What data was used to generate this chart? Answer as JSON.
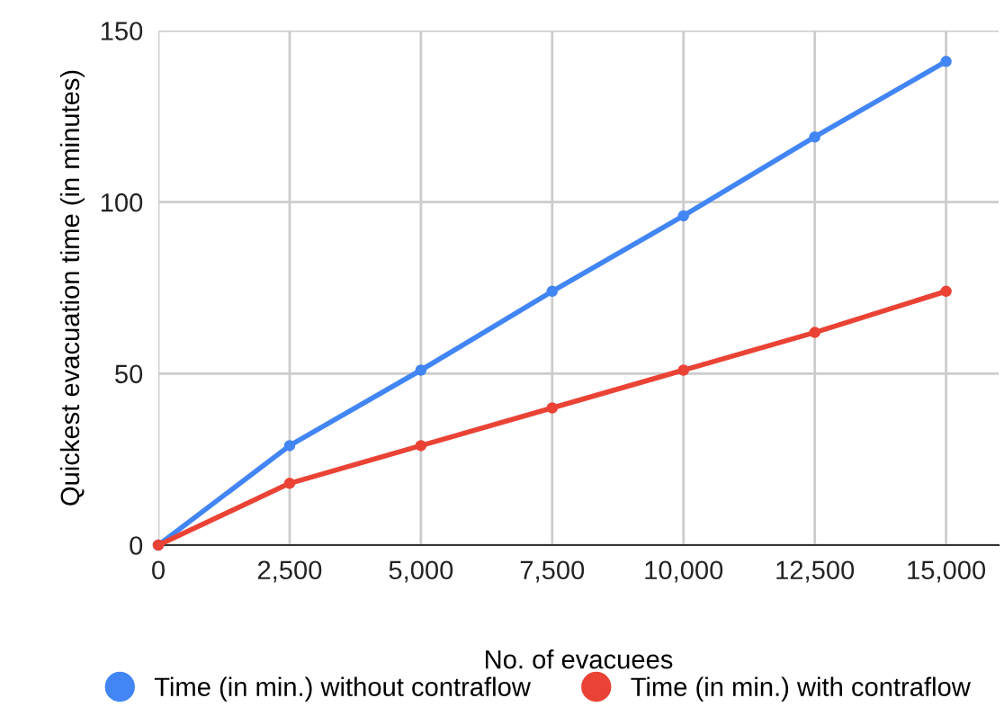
{
  "chart_data": {
    "type": "line",
    "xlabel": "No. of evacuees",
    "ylabel": "Quickest evacuation time (in minutes)",
    "x": [
      0,
      2500,
      5000,
      7500,
      10000,
      12500,
      15000
    ],
    "series": [
      {
        "name": "Time (in min.) without contraflow",
        "color": "#4285f4",
        "values": [
          0,
          29,
          51,
          74,
          96,
          119,
          141
        ]
      },
      {
        "name": "Time (in min.) with contraflow",
        "color": "#ea4335",
        "values": [
          0,
          18,
          29,
          40,
          51,
          62,
          74
        ]
      }
    ],
    "xlim": [
      0,
      16000
    ],
    "xticks": [
      {
        "value": 0,
        "label": "0"
      },
      {
        "value": 2500,
        "label": "2,500"
      },
      {
        "value": 5000,
        "label": "5,000"
      },
      {
        "value": 7500,
        "label": "7,500"
      },
      {
        "value": 10000,
        "label": "10,000"
      },
      {
        "value": 12500,
        "label": "12,500"
      },
      {
        "value": 15000,
        "label": "15,000"
      }
    ],
    "ylim": [
      0,
      150
    ],
    "yticks": [
      0,
      50,
      100,
      150
    ],
    "grid": true,
    "legend": "bottom",
    "marker": "circle",
    "line_style": "solid"
  }
}
